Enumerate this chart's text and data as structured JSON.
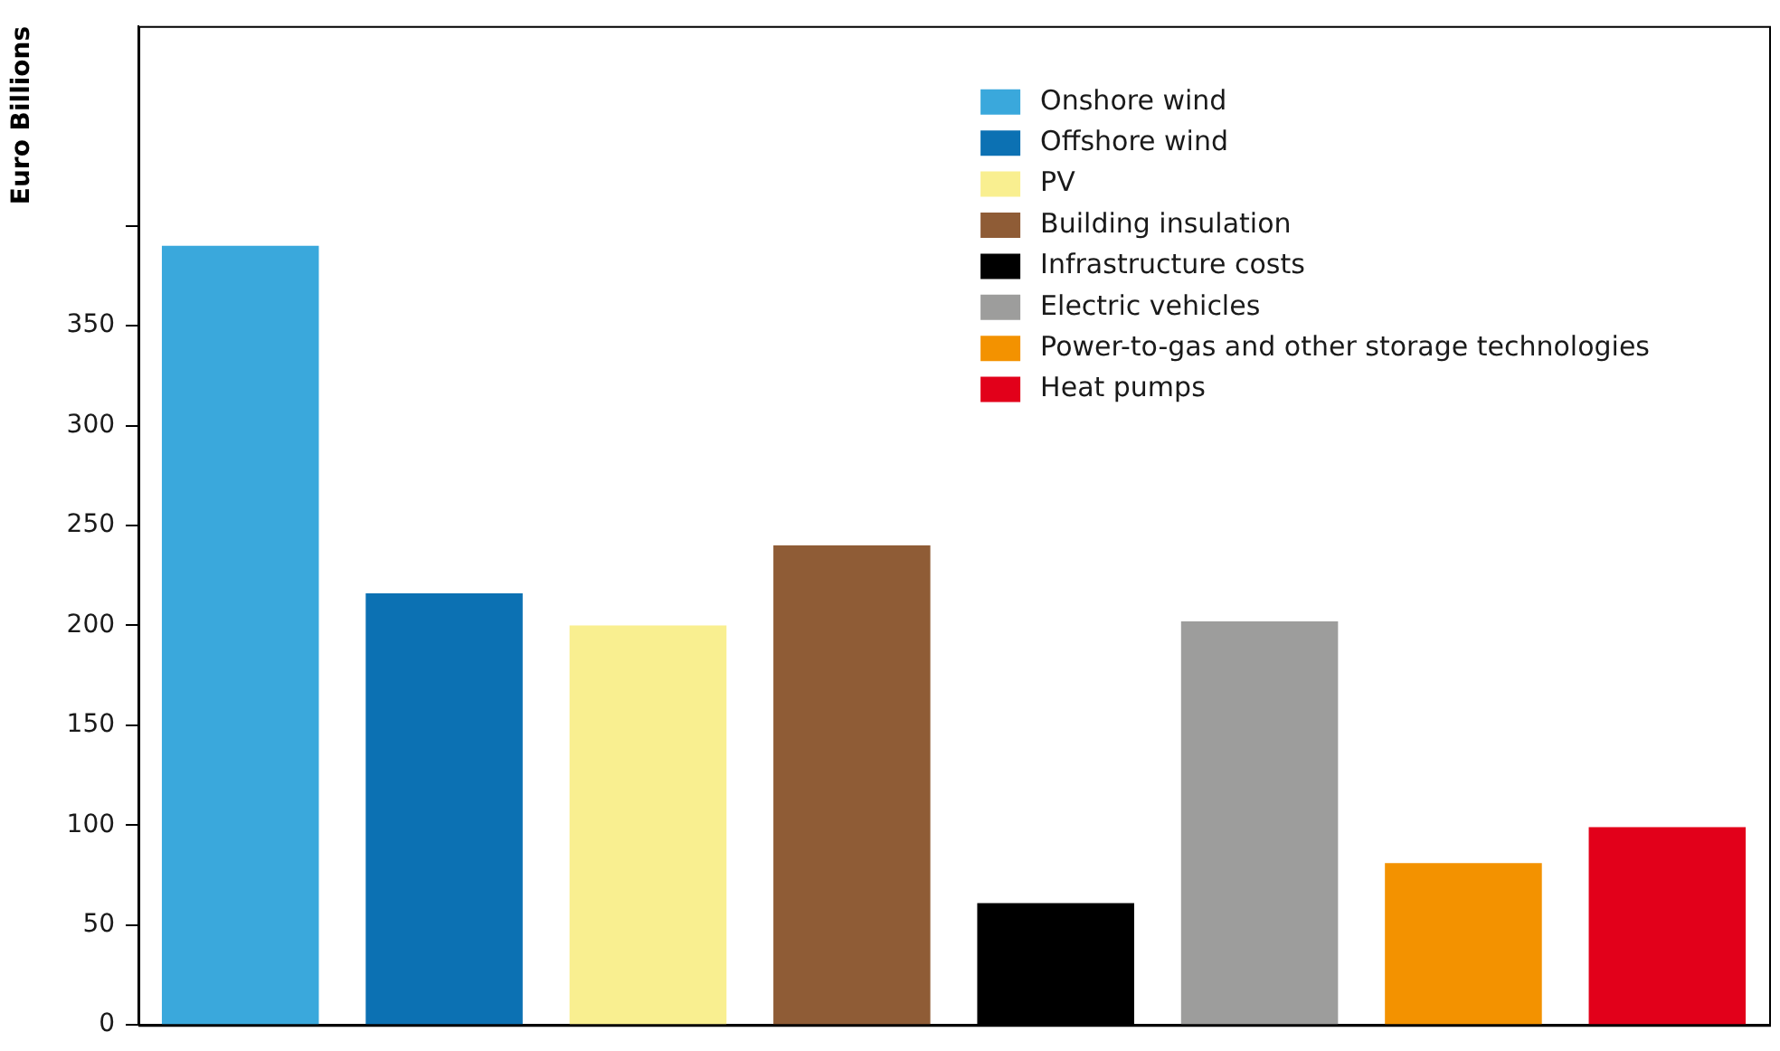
{
  "chart_data": {
    "type": "bar",
    "ylabel": "Euro Billions",
    "categories": [
      null,
      null,
      null,
      null,
      null,
      null,
      null,
      null
    ],
    "series": [
      {
        "name": "Onshore wind",
        "color": "#3aa8dc",
        "values": [
          390,
          null,
          null,
          null,
          null,
          null,
          null,
          null
        ]
      },
      {
        "name": "Offshore wind",
        "color": "#0c71b3",
        "values": [
          null,
          216,
          null,
          null,
          null,
          null,
          null,
          null
        ]
      },
      {
        "name": "PV",
        "color": "#f9ef90",
        "values": [
          null,
          null,
          200,
          null,
          null,
          null,
          null,
          null
        ]
      },
      {
        "name": "Building insulation",
        "color": "#8f5c36",
        "values": [
          null,
          null,
          null,
          240,
          null,
          null,
          null,
          null
        ]
      },
      {
        "name": "Infrastructure costs",
        "color": "#000000",
        "values": [
          null,
          null,
          null,
          null,
          61,
          null,
          null,
          null
        ]
      },
      {
        "name": "Electric vehicles",
        "color": "#9d9d9c",
        "values": [
          null,
          null,
          null,
          null,
          null,
          202,
          null,
          null
        ]
      },
      {
        "name": "Power-to-gas and other storage technologies",
        "color": "#f39200",
        "values": [
          null,
          null,
          null,
          null,
          null,
          null,
          81,
          null
        ]
      },
      {
        "name": "Heat pumps",
        "color": "#e2001a",
        "values": [
          null,
          null,
          null,
          null,
          null,
          null,
          null,
          99
        ]
      }
    ],
    "ylim": [
      0,
      500
    ],
    "yticks": [
      0,
      50,
      100,
      150,
      200,
      250,
      300,
      350,
      {
        "value": 400,
        "label": null
      }
    ],
    "grid": false,
    "legend": "top right",
    "tick_labels": "y"
  }
}
